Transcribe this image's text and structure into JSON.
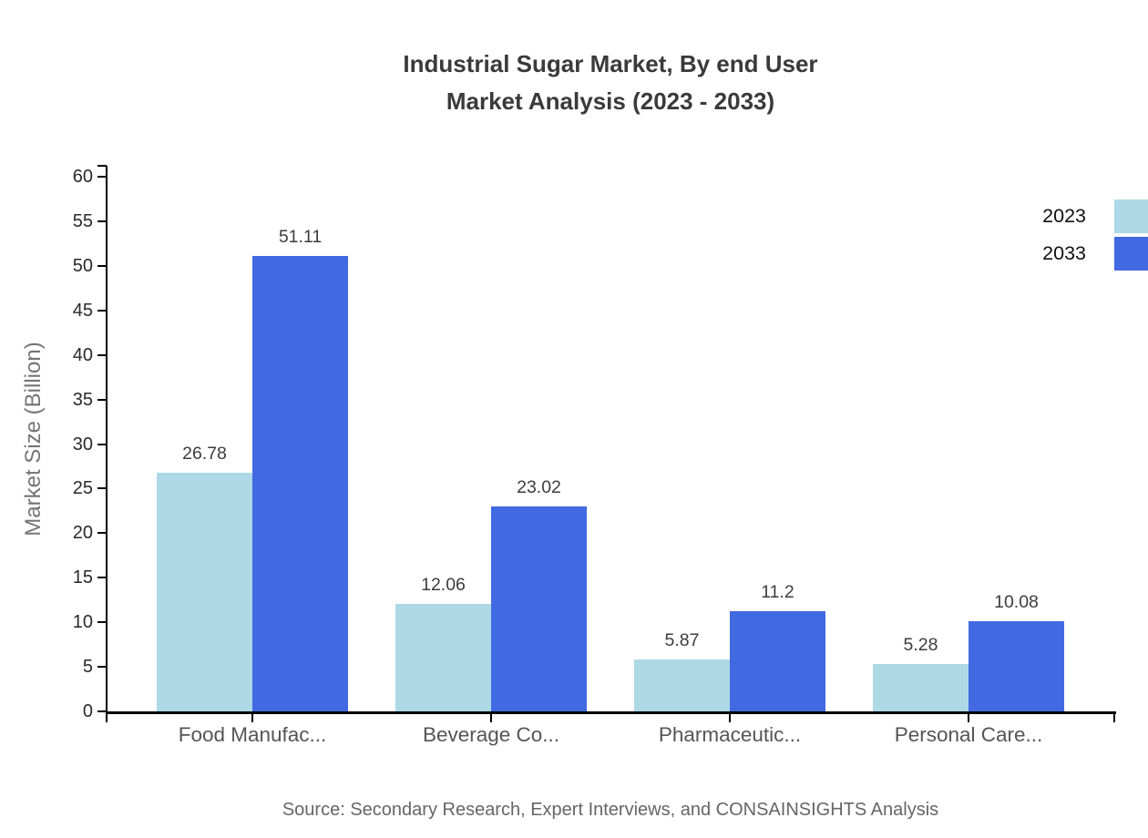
{
  "title": {
    "line1": "Industrial Sugar Market, By end User",
    "line2": "Market Analysis (2023 - 2033)"
  },
  "chart_data": {
    "type": "bar",
    "categories": [
      "Food Manufac...",
      "Beverage Co...",
      "Pharmaceutic...",
      "Personal Care..."
    ],
    "series": [
      {
        "name": "2023",
        "color": "#add8e6",
        "values": [
          26.78,
          12.06,
          5.87,
          5.28
        ]
      },
      {
        "name": "2033",
        "color": "#4169e1",
        "values": [
          51.11,
          23.02,
          11.2,
          10.08
        ]
      }
    ],
    "title": "Industrial Sugar Market, By end User Market Analysis (2023 - 2033)",
    "xlabel": "",
    "ylabel": "Market Size (Billion)",
    "ylim": [
      0,
      60
    ],
    "ytick_step": 5,
    "grid": false,
    "legend_position": "top-right",
    "value_labels": true
  },
  "source_note": "Source: Secondary Research, Expert Interviews, and CONSAINSIGHTS Analysis",
  "colors": {
    "series_2023": "#add8e6",
    "series_2033": "#4169e1",
    "axis": "#000000",
    "title_text": "#3a3a3a",
    "value_label_text": "#3d3d3d",
    "category_text": "#555555",
    "muted_text": "#666666"
  }
}
